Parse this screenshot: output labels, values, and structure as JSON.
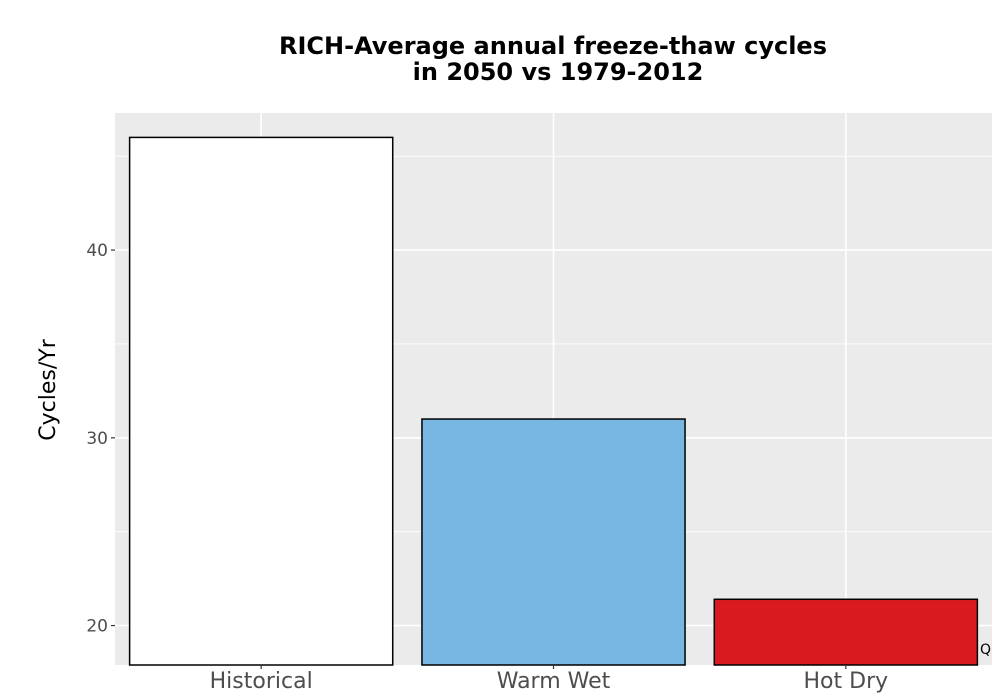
{
  "chart_data": {
    "type": "bar",
    "title_lines": [
      "RICH-Average annual freeze-thaw cycles",
      "in 2050 vs 1979-2012"
    ],
    "xlabel": "",
    "ylabel": "Cycles/Yr",
    "categories": [
      "Historical",
      "Warm Wet",
      "Hot Dry"
    ],
    "values": [
      46.0,
      31.0,
      21.4
    ],
    "bar_colors": [
      "#ffffff",
      "#78b7e1",
      "#d91b1f"
    ],
    "ylim": [
      17.9,
      47.3
    ],
    "y_ticks": [
      20,
      30,
      40
    ],
    "y_tick_labels": [
      "20",
      "30",
      "40"
    ],
    "grid": true,
    "panel_background": "#ebebeb",
    "gridline_color": "#ffffff",
    "bar_outline_color": "#000000"
  },
  "corner_mark": "Q"
}
